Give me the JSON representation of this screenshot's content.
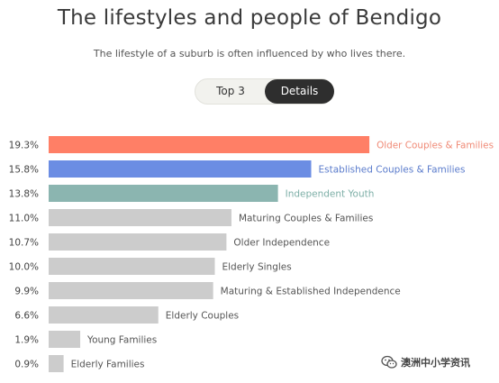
{
  "header": {
    "title": "The lifestyles and people of Bendigo",
    "subtitle": "The lifestyle of a suburb is often influenced by who lives there."
  },
  "toggle": {
    "options": [
      "Top 3",
      "Details"
    ],
    "selected": "Details"
  },
  "chart_data": {
    "type": "bar",
    "orientation": "horizontal",
    "title": "",
    "xlabel": "",
    "ylabel": "",
    "value_format": "percent_1dp",
    "grid": false,
    "legend": "none",
    "categories": [
      "Older Couples & Families",
      "Established Couples & Families",
      "Independent Youth",
      "Maturing Couples & Families",
      "Older Independence",
      "Elderly Singles",
      "Maturing & Established Independence",
      "Elderly Couples",
      "Young Families",
      "Elderly Families"
    ],
    "values": [
      19.3,
      15.8,
      13.8,
      11.0,
      10.7,
      10.0,
      9.9,
      6.6,
      1.9,
      0.9
    ],
    "bar_colors": [
      "#ff7f66",
      "#6b8de3",
      "#8bb5b0",
      "#cccccc",
      "#cccccc",
      "#cccccc",
      "#cccccc",
      "#cccccc",
      "#cccccc",
      "#cccccc"
    ],
    "label_colors": [
      "#f08a76",
      "#5b7ccc",
      "#7fb0a8",
      "#555555",
      "#555555",
      "#555555",
      "#555555",
      "#555555",
      "#555555",
      "#555555"
    ]
  },
  "watermark": {
    "text": "澳洲中小学资讯",
    "icon": "wechat-icon"
  }
}
